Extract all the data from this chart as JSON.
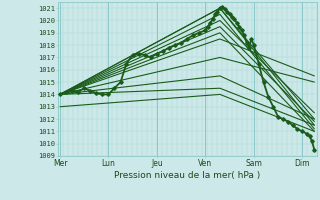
{
  "title": "Pression niveau de la mer( hPa )",
  "background_color": "#cce8e8",
  "grid_color_major": "#8cc8c8",
  "grid_color_minor": "#a8d8d8",
  "line_color": "#1a5c1a",
  "ylim": [
    1009,
    1021.5
  ],
  "yticks": [
    1009,
    1010,
    1011,
    1012,
    1013,
    1014,
    1015,
    1016,
    1017,
    1018,
    1019,
    1020,
    1021
  ],
  "x_labels": [
    "Mer",
    "Lun",
    "Jeu",
    "Ven",
    "Sam",
    "Dim"
  ],
  "x_positions": [
    0,
    1,
    2,
    3,
    4,
    5
  ],
  "xlim": [
    -0.05,
    5.3
  ],
  "series": [
    {
      "x": [
        0.0,
        0.12,
        0.25,
        0.37,
        0.5,
        0.62,
        0.75,
        0.87,
        1.0,
        1.12,
        1.25,
        1.37,
        1.5,
        1.62,
        1.75,
        1.87,
        2.0,
        2.12,
        2.25,
        2.37,
        2.5,
        2.62,
        2.75,
        2.87,
        3.0,
        3.05,
        3.1,
        3.15,
        3.2,
        3.25,
        3.3,
        3.35,
        3.4,
        3.45,
        3.5,
        3.55,
        3.6,
        3.65,
        3.7,
        3.75,
        3.8,
        3.85,
        3.9,
        3.95,
        4.0,
        4.1,
        4.2,
        4.3,
        4.4,
        4.5,
        4.6,
        4.7,
        4.8,
        4.9,
        5.0,
        5.1,
        5.15,
        5.2,
        5.25
      ],
      "y": [
        1014.0,
        1014.2,
        1014.3,
        1014.2,
        1014.5,
        1014.3,
        1014.1,
        1014.0,
        1014.0,
        1014.5,
        1015.0,
        1016.5,
        1017.2,
        1017.3,
        1017.2,
        1017.0,
        1017.3,
        1017.5,
        1017.8,
        1018.0,
        1018.2,
        1018.5,
        1018.8,
        1019.0,
        1019.2,
        1019.5,
        1019.8,
        1020.1,
        1020.5,
        1020.7,
        1021.0,
        1021.1,
        1020.9,
        1020.7,
        1020.5,
        1020.3,
        1020.1,
        1019.8,
        1019.5,
        1019.2,
        1018.8,
        1018.2,
        1017.8,
        1018.5,
        1018.0,
        1016.5,
        1015.0,
        1013.8,
        1013.0,
        1012.2,
        1012.0,
        1011.8,
        1011.5,
        1011.2,
        1011.0,
        1010.8,
        1010.6,
        1010.2,
        1009.5
      ],
      "marker": true,
      "linewidth": 1.3
    },
    {
      "x": [
        0.0,
        3.3,
        5.25
      ],
      "y": [
        1014.0,
        1021.0,
        1011.5
      ],
      "marker": false,
      "linewidth": 0.8
    },
    {
      "x": [
        0.0,
        3.3,
        5.25
      ],
      "y": [
        1014.0,
        1021.0,
        1012.0
      ],
      "marker": false,
      "linewidth": 0.8
    },
    {
      "x": [
        0.0,
        3.3,
        5.25
      ],
      "y": [
        1014.0,
        1020.5,
        1011.2
      ],
      "marker": false,
      "linewidth": 0.8
    },
    {
      "x": [
        0.0,
        3.3,
        5.25
      ],
      "y": [
        1014.0,
        1020.0,
        1012.5
      ],
      "marker": false,
      "linewidth": 0.8
    },
    {
      "x": [
        0.0,
        3.3,
        5.25
      ],
      "y": [
        1014.0,
        1019.5,
        1011.8
      ],
      "marker": false,
      "linewidth": 0.8
    },
    {
      "x": [
        0.0,
        3.3,
        5.25
      ],
      "y": [
        1014.0,
        1019.0,
        1011.0
      ],
      "marker": false,
      "linewidth": 0.8
    },
    {
      "x": [
        0.0,
        3.3,
        5.25
      ],
      "y": [
        1014.0,
        1018.5,
        1015.5
      ],
      "marker": false,
      "linewidth": 0.8
    },
    {
      "x": [
        0.0,
        3.3,
        5.25
      ],
      "y": [
        1014.0,
        1017.0,
        1015.0
      ],
      "marker": false,
      "linewidth": 0.8
    },
    {
      "x": [
        0.0,
        3.3,
        5.25
      ],
      "y": [
        1014.0,
        1015.5,
        1012.0
      ],
      "marker": false,
      "linewidth": 0.8
    },
    {
      "x": [
        0.0,
        3.3,
        5.25
      ],
      "y": [
        1014.0,
        1014.5,
        1011.5
      ],
      "marker": false,
      "linewidth": 0.8
    },
    {
      "x": [
        0.0,
        3.3,
        5.25
      ],
      "y": [
        1013.0,
        1014.0,
        1011.0
      ],
      "marker": false,
      "linewidth": 0.8
    }
  ],
  "marker_series_detail": {
    "x_extra": [
      5.25
    ],
    "y_extra": [
      1009.0
    ]
  }
}
